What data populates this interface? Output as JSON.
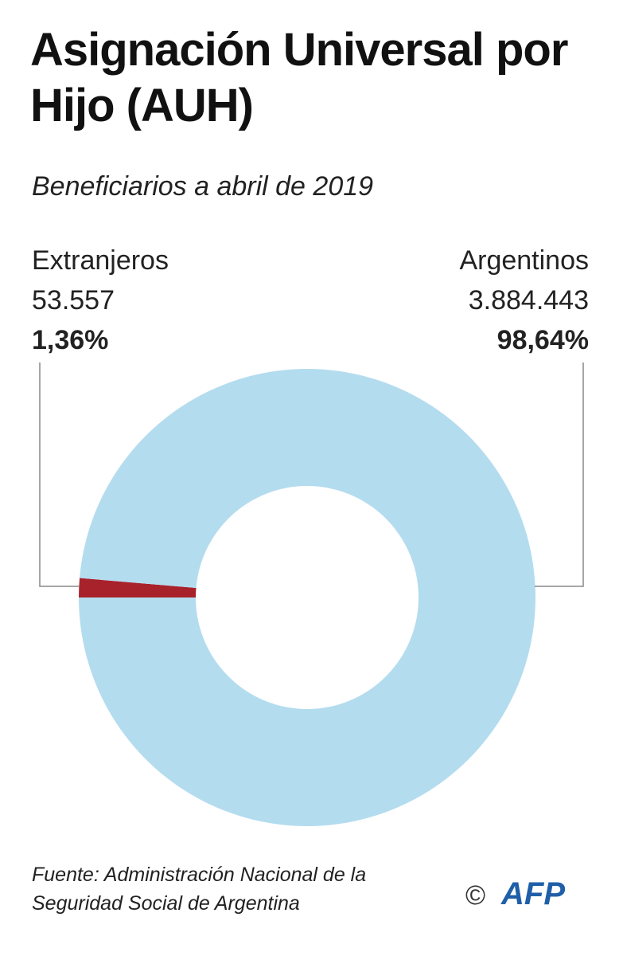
{
  "chart_data": {
    "type": "pie",
    "donut": true,
    "title": "Asignación Universal por Hijo (AUH)",
    "subtitle": "Beneficiarios a abril de 2019",
    "categories": [
      "Extranjeros",
      "Argentinos"
    ],
    "values": [
      53557,
      3884443
    ],
    "value_labels": [
      "53.557",
      "3.884.443"
    ],
    "percentages": [
      1.36,
      98.64
    ],
    "percentage_labels": [
      "1,36%",
      "98,64%"
    ],
    "colors": [
      "#a8222b",
      "#b4dcef"
    ],
    "source": "Fuente: Administración Nacional de la Seguridad Social de Argentina",
    "credit": "©",
    "logo": "AFP"
  }
}
